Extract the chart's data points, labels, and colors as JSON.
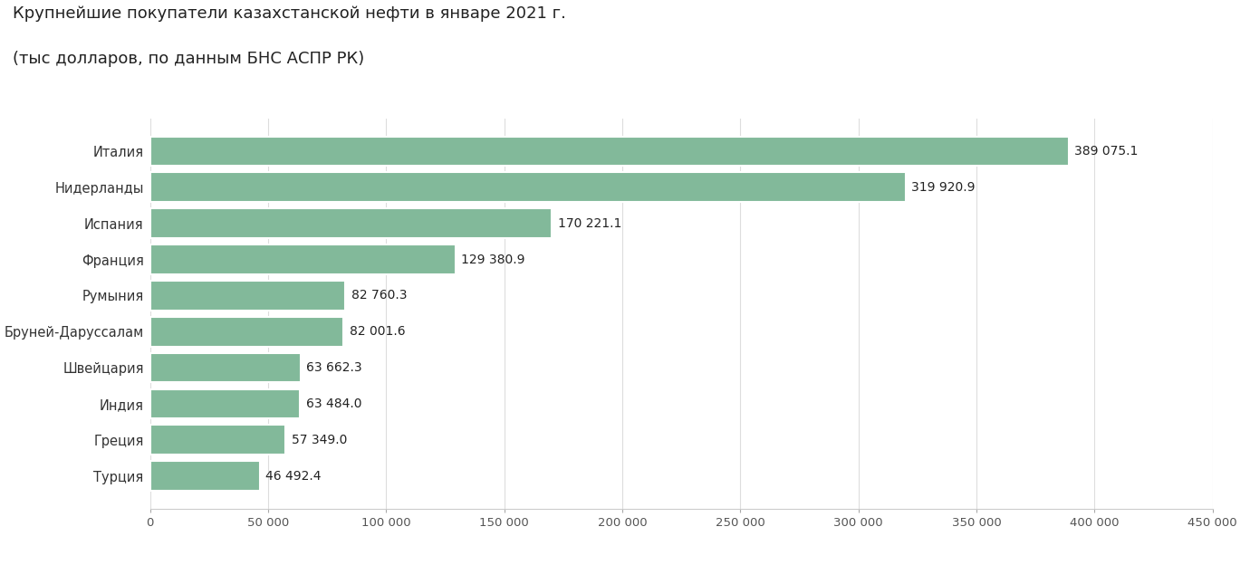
{
  "title_line1": "Крупнейшие покупатели казахстанской нефти в январе 2021 г.",
  "title_line2": "(тыс долларов, по данным БНС АСПР РК)",
  "categories": [
    "Италия",
    "Нидерланды",
    "Испания",
    "Франция",
    "Румыния",
    "Бруней-Даруссалам",
    "Швейцария",
    "Индия",
    "Греция",
    "Турция"
  ],
  "values": [
    389075.1,
    319920.9,
    170221.1,
    129380.9,
    82760.3,
    82001.6,
    63662.3,
    63484.0,
    57349.0,
    46492.4
  ],
  "labels": [
    "389 075.1",
    "319 920.9",
    "170 221.1",
    "129 380.9",
    "82 760.3",
    "82 001.6",
    "63 662.3",
    "63 484.0",
    "57 349.0",
    "46 492.4"
  ],
  "bar_color": "#82b99a",
  "background_color": "#ffffff",
  "xlim": [
    0,
    450000
  ],
  "xtick_values": [
    0,
    50000,
    100000,
    150000,
    200000,
    250000,
    300000,
    350000,
    400000,
    450000
  ],
  "xtick_labels": [
    "0",
    "50 000",
    "100 000",
    "150 000",
    "200 000",
    "250 000",
    "300 000",
    "350 000",
    "400 000",
    "450 000"
  ],
  "title_fontsize": 13,
  "label_fontsize": 10,
  "ytick_fontsize": 10.5,
  "xtick_fontsize": 9.5
}
